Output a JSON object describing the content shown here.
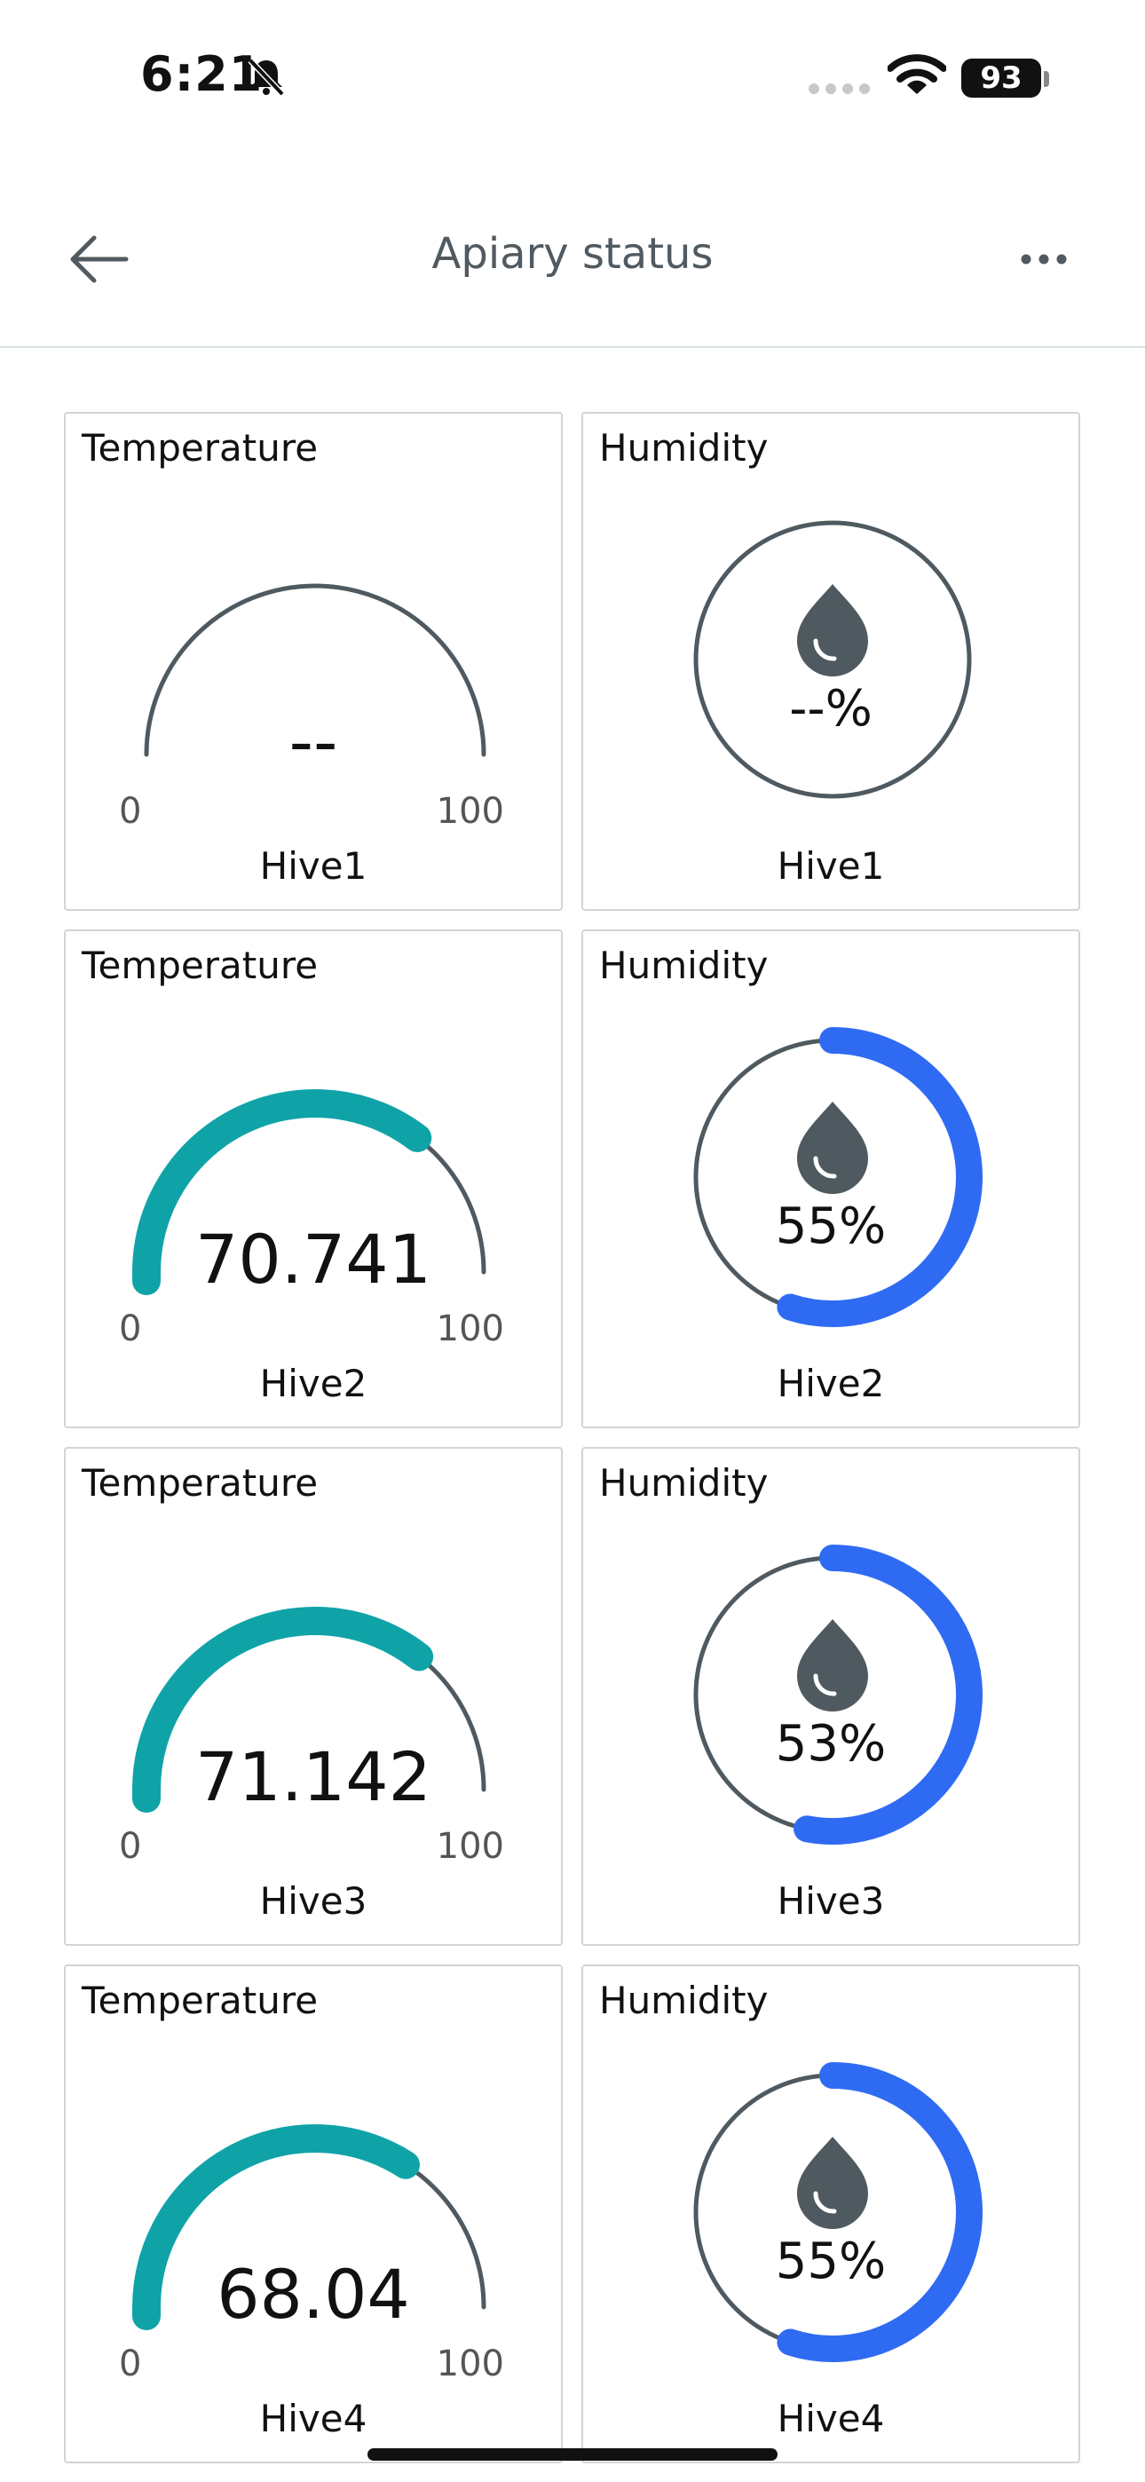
{
  "status_bar": {
    "time": "6:21",
    "battery": "93"
  },
  "app_bar": {
    "title": "Apiary status"
  },
  "gauge_labels": {
    "temperature": "Temperature",
    "humidity": "Humidity",
    "min": "0",
    "max": "100"
  },
  "colors": {
    "temp_fill": "#0fa3a8",
    "humidity_fill": "#2f6bf2",
    "track": "#4f5a60"
  },
  "hives": [
    {
      "name": "Hive1",
      "temperature": "--",
      "temperature_level": 0,
      "humidity": "--%",
      "humidity_level": 0
    },
    {
      "name": "Hive2",
      "temperature": "70.741",
      "temperature_level": 0.70741,
      "humidity": "55%",
      "humidity_level": 0.55
    },
    {
      "name": "Hive3",
      "temperature": "71.142",
      "temperature_level": 0.71142,
      "humidity": "53%",
      "humidity_level": 0.53
    },
    {
      "name": "Hive4",
      "temperature": "68.04",
      "temperature_level": 0.6804,
      "humidity": "55%",
      "humidity_level": 0.55
    }
  ]
}
